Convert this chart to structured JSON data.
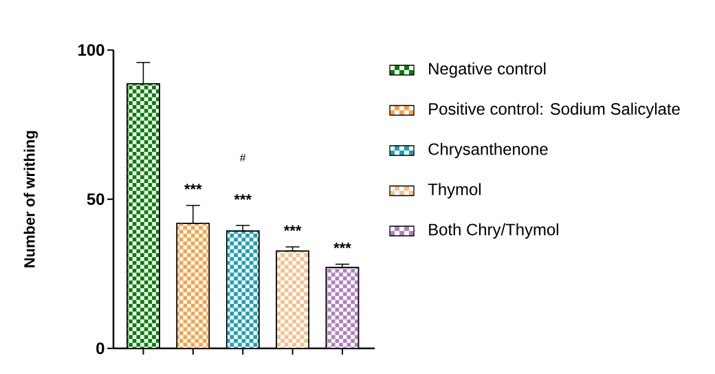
{
  "chart_data": {
    "type": "bar",
    "ylabel": "Number of writhing",
    "categories": [
      null,
      null,
      null,
      null,
      null
    ],
    "series": [
      {
        "name": "Negative control",
        "color": "#008000",
        "values": [
          88.7,
          null,
          null,
          null,
          null
        ],
        "errors": [
          [
            88.7,
            95.8
          ],
          null,
          null,
          null,
          null
        ]
      },
      {
        "name": "Positive control: Sodium Salicylate",
        "color": "#ff9f40",
        "values": [
          null,
          41.9,
          null,
          null,
          null
        ],
        "errors": [
          null,
          [
            41.9,
            47.9
          ],
          null,
          null,
          null
        ]
      },
      {
        "name": "Chrysanthenone",
        "color": "#1a9fb5",
        "values": [
          null,
          null,
          39.3,
          null,
          null
        ],
        "errors": [
          null,
          null,
          [
            39.3,
            41.2
          ],
          null,
          null
        ]
      },
      {
        "name": "Thymol",
        "color": "#f5c08a",
        "values": [
          null,
          null,
          null,
          32.6,
          null
        ],
        "errors": [
          null,
          null,
          null,
          [
            32.6,
            34.0
          ],
          null
        ]
      },
      {
        "name": "Both Chry/Thymol",
        "color": "#b07fc0",
        "values": [
          null,
          null,
          null,
          null,
          27.1
        ],
        "errors": [
          null,
          null,
          null,
          null,
          [
            27.1,
            28.2
          ]
        ]
      }
    ],
    "ylim": [
      0,
      100
    ],
    "yticks": [
      0,
      50,
      100
    ],
    "grid": false,
    "legend": "right",
    "annotations": [
      "***",
      "***",
      "#",
      "***",
      "***"
    ]
  }
}
